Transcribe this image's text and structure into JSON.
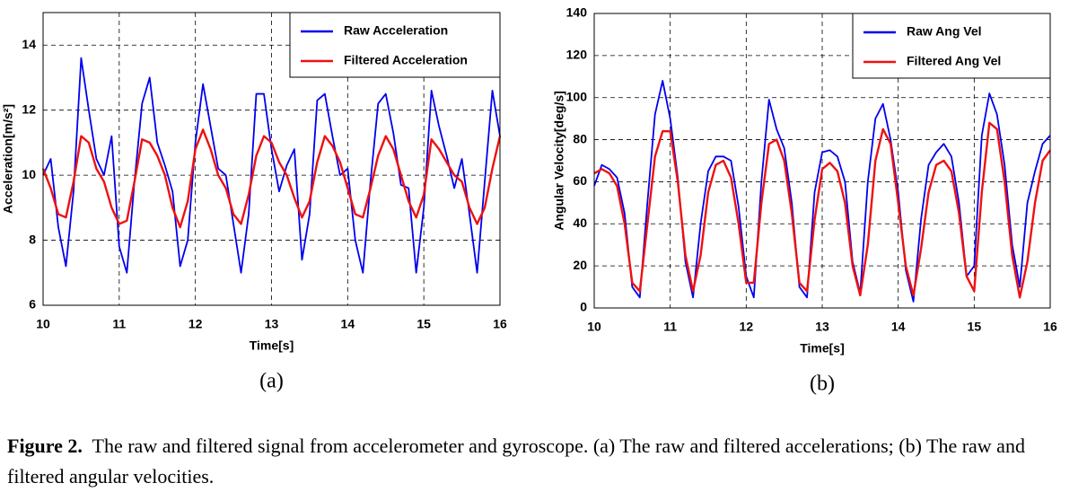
{
  "chart_data": [
    {
      "type": "line",
      "label": "(a)",
      "xlabel": "Time[s]",
      "ylabel": "Acceleration[m/s²]",
      "x": [
        10.0,
        10.1,
        10.2,
        10.3,
        10.4,
        10.5,
        10.6,
        10.7,
        10.8,
        10.9,
        11.0,
        11.1,
        11.2,
        11.3,
        11.4,
        11.5,
        11.6,
        11.7,
        11.8,
        11.9,
        12.0,
        12.1,
        12.2,
        12.3,
        12.4,
        12.5,
        12.6,
        12.7,
        12.8,
        12.9,
        13.0,
        13.1,
        13.2,
        13.3,
        13.4,
        13.5,
        13.6,
        13.7,
        13.8,
        13.9,
        14.0,
        14.1,
        14.2,
        14.3,
        14.4,
        14.5,
        14.6,
        14.7,
        14.8,
        14.9,
        15.0,
        15.1,
        15.2,
        15.3,
        15.4,
        15.5,
        15.6,
        15.7,
        15.8,
        15.9,
        16.0
      ],
      "series": [
        {
          "name": "Raw Acceleration",
          "color": "#0000ee",
          "values": [
            10.0,
            10.5,
            8.4,
            7.2,
            9.5,
            13.6,
            12.0,
            10.5,
            10.0,
            11.2,
            7.8,
            7.0,
            9.8,
            12.2,
            13.0,
            11.0,
            10.3,
            9.5,
            7.2,
            8.0,
            11.0,
            12.8,
            11.5,
            10.2,
            10.0,
            8.5,
            7.0,
            8.8,
            12.5,
            12.5,
            10.8,
            9.5,
            10.3,
            10.8,
            7.4,
            8.8,
            12.3,
            12.5,
            11.2,
            10.0,
            10.2,
            8.0,
            7.0,
            9.8,
            12.2,
            12.5,
            11.3,
            9.7,
            9.6,
            7.0,
            9.0,
            12.6,
            11.5,
            10.6,
            9.6,
            10.5,
            8.8,
            7.0,
            9.8,
            12.6,
            11.2
          ]
        },
        {
          "name": "Filtered Acceleration",
          "color": "#ee1111",
          "values": [
            10.2,
            9.6,
            8.8,
            8.7,
            9.8,
            11.2,
            11.0,
            10.2,
            9.8,
            9.0,
            8.5,
            8.6,
            9.8,
            11.1,
            11.0,
            10.6,
            10.0,
            9.0,
            8.4,
            9.2,
            10.8,
            11.4,
            10.8,
            10.0,
            9.6,
            8.8,
            8.5,
            9.4,
            10.6,
            11.2,
            11.0,
            10.4,
            10.0,
            9.3,
            8.7,
            9.2,
            10.4,
            11.2,
            10.9,
            10.4,
            9.6,
            8.8,
            8.7,
            9.6,
            10.6,
            11.2,
            10.8,
            10.0,
            9.2,
            8.7,
            9.4,
            11.1,
            10.8,
            10.4,
            10.0,
            9.8,
            9.0,
            8.5,
            9.0,
            10.2,
            11.2
          ]
        }
      ],
      "xlim": [
        10,
        16
      ],
      "xticks": [
        10,
        11,
        12,
        13,
        14,
        15,
        16
      ],
      "ylim": [
        6,
        15
      ],
      "yticks": [
        6,
        8,
        10,
        12,
        14
      ],
      "grid": true,
      "legend": "upper right"
    },
    {
      "type": "line",
      "label": "(b)",
      "xlabel": "Time[s]",
      "ylabel": "Angular Velocity[deg/s]",
      "x": [
        10.0,
        10.1,
        10.2,
        10.3,
        10.4,
        10.5,
        10.6,
        10.7,
        10.8,
        10.9,
        11.0,
        11.1,
        11.2,
        11.3,
        11.4,
        11.5,
        11.6,
        11.7,
        11.8,
        11.9,
        12.0,
        12.1,
        12.2,
        12.3,
        12.4,
        12.5,
        12.6,
        12.7,
        12.8,
        12.9,
        13.0,
        13.1,
        13.2,
        13.3,
        13.4,
        13.5,
        13.6,
        13.7,
        13.8,
        13.9,
        14.0,
        14.1,
        14.2,
        14.3,
        14.4,
        14.5,
        14.6,
        14.7,
        14.8,
        14.9,
        15.0,
        15.1,
        15.2,
        15.3,
        15.4,
        15.5,
        15.6,
        15.7,
        15.8,
        15.9,
        16.0
      ],
      "series": [
        {
          "name": "Raw Ang Vel",
          "color": "#0000ee",
          "values": [
            58,
            68,
            66,
            62,
            45,
            10,
            5,
            50,
            92,
            108,
            90,
            62,
            22,
            5,
            40,
            65,
            72,
            72,
            70,
            48,
            15,
            5,
            60,
            99,
            85,
            76,
            50,
            10,
            5,
            55,
            74,
            75,
            72,
            60,
            22,
            7,
            60,
            90,
            97,
            80,
            55,
            18,
            3,
            42,
            68,
            74,
            78,
            72,
            50,
            15,
            20,
            82,
            102,
            92,
            68,
            30,
            10,
            50,
            65,
            78,
            82
          ]
        },
        {
          "name": "Filtered Ang Vel",
          "color": "#ee1111",
          "values": [
            64,
            66,
            64,
            58,
            40,
            12,
            8,
            40,
            72,
            84,
            84,
            60,
            25,
            8,
            25,
            55,
            68,
            70,
            62,
            40,
            12,
            12,
            50,
            78,
            80,
            70,
            45,
            12,
            8,
            42,
            66,
            69,
            65,
            50,
            20,
            6,
            30,
            70,
            85,
            78,
            50,
            20,
            6,
            28,
            55,
            68,
            70,
            65,
            45,
            15,
            8,
            55,
            88,
            85,
            60,
            25,
            5,
            22,
            50,
            70,
            75
          ]
        }
      ],
      "xlim": [
        10,
        16
      ],
      "xticks": [
        10,
        11,
        12,
        13,
        14,
        15,
        16
      ],
      "ylim": [
        0,
        140
      ],
      "yticks": [
        0,
        20,
        40,
        60,
        80,
        100,
        120,
        140
      ],
      "grid": true,
      "legend": "upper right"
    }
  ],
  "caption": {
    "label": "Figure 2.",
    "text": "The raw and filtered signal from accelerometer and gyroscope. (a) The raw and filtered accelerations; (b) The raw and filtered angular velocities."
  }
}
